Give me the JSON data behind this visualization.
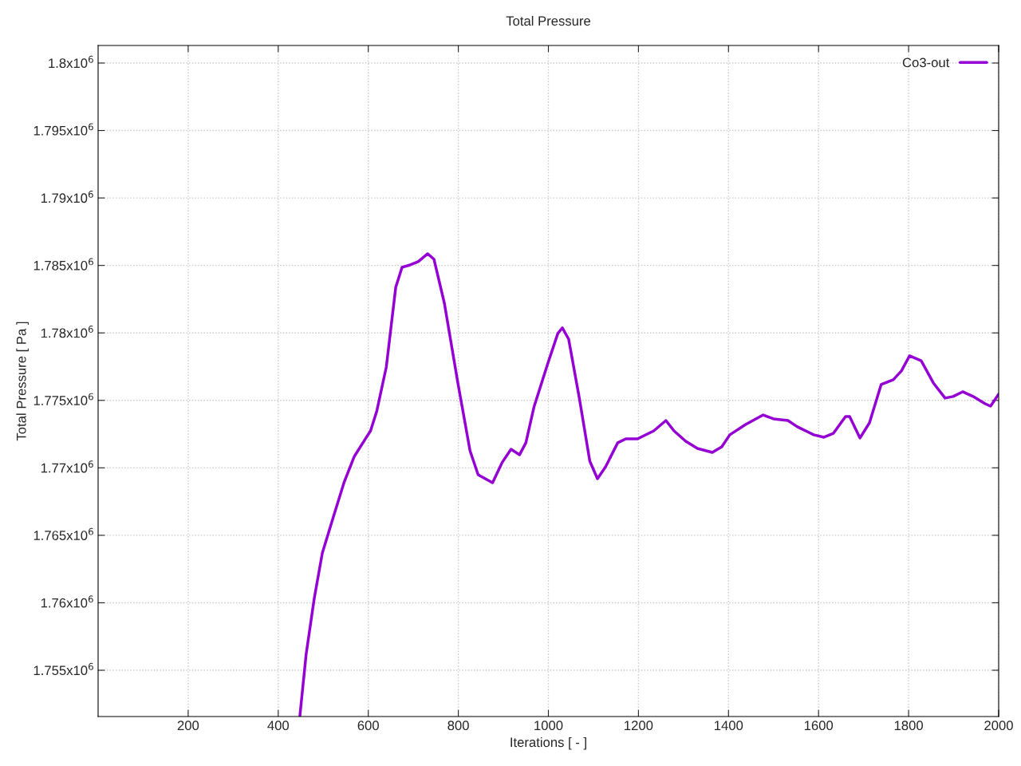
{
  "chart_data": {
    "type": "line",
    "title": "Total Pressure",
    "xlabel": "Iterations [ - ]",
    "ylabel": "Total Pressure [ Pa ]",
    "xlim": [
      0,
      2000
    ],
    "xticks": [
      200,
      400,
      600,
      800,
      1000,
      1200,
      1400,
      1600,
      1800,
      2000
    ],
    "ylim": [
      1751570,
      1801300
    ],
    "yticks": [
      {
        "value": 1755000,
        "label": "1.755x10$^{6}$"
      },
      {
        "value": 1760000,
        "label": "1.76x10$^{6}$"
      },
      {
        "value": 1765000,
        "label": "1.765x10$^{6}$"
      },
      {
        "value": 1770000,
        "label": "1.77x10$^{6}$"
      },
      {
        "value": 1775000,
        "label": "1.775x10$^{6}$"
      },
      {
        "value": 1780000,
        "label": "1.78x10$^{6}$"
      },
      {
        "value": 1785000,
        "label": "1.785x10$^{6}$"
      },
      {
        "value": 1790000,
        "label": "1.79x10$^{6}$"
      },
      {
        "value": 1795000,
        "label": "1.795x10$^{6}$"
      },
      {
        "value": 1800000,
        "label": "1.8x10$^{6}$"
      }
    ],
    "grid": true,
    "legend": "top right",
    "line_style": "solid",
    "series": [
      {
        "name": "Co3-out",
        "color": "#9400d3",
        "x": [
          448,
          462,
          480,
          498,
          524,
          546,
          569,
          596,
          605,
          619,
          640,
          661,
          675,
          693,
          711,
          732,
          746,
          769,
          799,
          826,
          844,
          876,
          897,
          917,
          936,
          950,
          968,
          999,
          1021,
          1031,
          1045,
          1069,
          1092,
          1109,
          1127,
          1154,
          1172,
          1198,
          1234,
          1261,
          1279,
          1305,
          1331,
          1364,
          1385,
          1403,
          1438,
          1477,
          1500,
          1532,
          1553,
          1589,
          1612,
          1633,
          1660,
          1669,
          1692,
          1713,
          1739,
          1766,
          1784,
          1802,
          1828,
          1855,
          1881,
          1899,
          1920,
          1943,
          1970,
          1982,
          2000
        ],
        "values": [
          1751570,
          1756180,
          1760320,
          1763690,
          1766530,
          1768900,
          1770850,
          1772270,
          1772740,
          1774220,
          1777470,
          1783380,
          1784860,
          1785040,
          1785280,
          1785870,
          1785450,
          1782200,
          1776290,
          1771260,
          1769490,
          1768900,
          1770380,
          1771380,
          1770970,
          1771860,
          1774510,
          1777770,
          1779960,
          1780370,
          1779540,
          1775110,
          1770490,
          1769190,
          1770080,
          1771860,
          1772150,
          1772150,
          1772740,
          1773510,
          1772740,
          1771970,
          1771440,
          1771140,
          1771560,
          1772450,
          1773210,
          1773920,
          1773630,
          1773510,
          1773040,
          1772450,
          1772270,
          1772560,
          1773810,
          1773810,
          1772210,
          1773330,
          1776170,
          1776530,
          1777180,
          1778300,
          1777940,
          1776290,
          1775170,
          1775290,
          1775640,
          1775290,
          1774750,
          1774570,
          1775460
        ]
      }
    ]
  }
}
